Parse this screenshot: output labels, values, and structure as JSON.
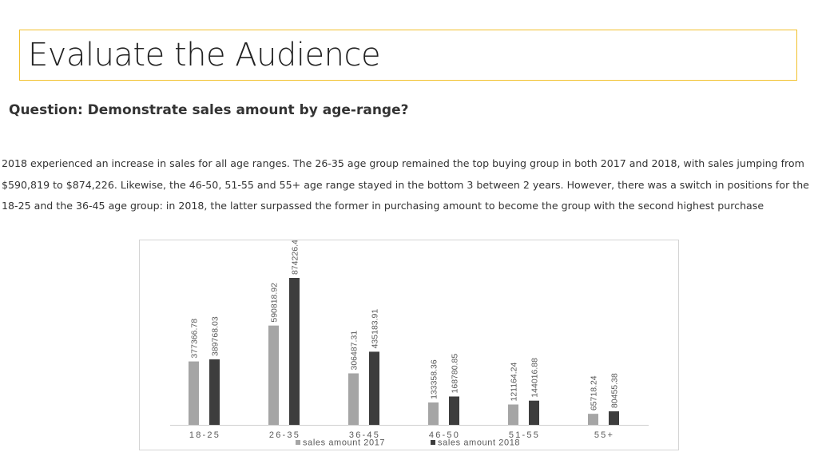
{
  "page": {
    "title": "Evaluate the Audience",
    "question": "Question: Demonstrate sales amount by age-range?",
    "paragraph_lines": [
      "2018 experienced an increase in sales for all age ranges. The 26-35 age group remained the top buying group in both 2017 and 2018, with sales jumping from",
      "$590,819 to $874,226. Likewise, the 46-50, 51-55 and 55+ age range stayed in the bottom 3 between 2 years. However, there was a switch in positions for the",
      "18-25 and the 36-45 age group: in 2018, the latter surpassed the former in purchasing amount to become the group with the second highest purchase"
    ],
    "accent_color": "#f2c12e"
  },
  "chart_data": {
    "type": "bar",
    "categories": [
      "18-25",
      "26-35",
      "36-45",
      "46-50",
      "51-55",
      "55+"
    ],
    "series": [
      {
        "name": "sales amount 2017",
        "color": "#a5a5a5",
        "values": [
          377366.78,
          590818.92,
          306487.31,
          133358.36,
          121164.24,
          65718.24
        ],
        "labels": [
          "377366.78",
          "590818.92",
          "306487.31",
          "133358.36",
          "121164.24",
          "65718.24"
        ]
      },
      {
        "name": "sales amount 2018",
        "color": "#3d3d3d",
        "values": [
          389768.03,
          874226.41,
          435183.91,
          168780.85,
          144016.88,
          80455.38
        ],
        "labels": [
          "389768.03",
          "874226.41",
          "435183.91",
          "168780.85",
          "144016.88",
          "80455.38"
        ]
      }
    ],
    "title": "",
    "xlabel": "",
    "ylabel": "",
    "ylim": [
      0,
      874226.41
    ],
    "grid": false,
    "legend": "bottom"
  }
}
